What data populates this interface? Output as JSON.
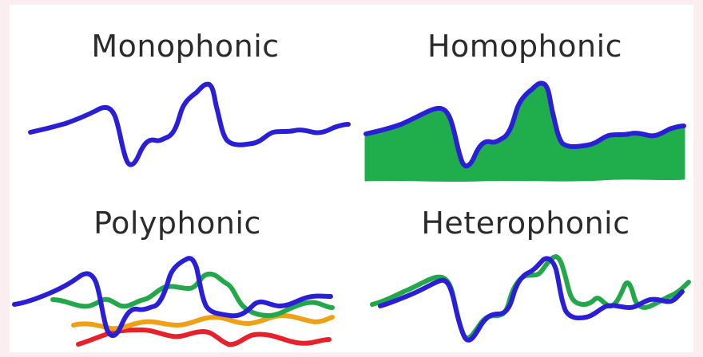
{
  "panels": [
    {
      "id": "monophonic",
      "label": "Monophonic"
    },
    {
      "id": "homophonic",
      "label": "Homophonic"
    },
    {
      "id": "polyphonic",
      "label": "Polyphonic"
    },
    {
      "id": "heterophonic",
      "label": "Heterophonic"
    }
  ],
  "colors": {
    "melody": "#2a1fd6",
    "accompaniment_fill": "#1fae4b",
    "voice_green": "#22a84a",
    "voice_orange": "#f0a015",
    "voice_red": "#e8202a",
    "background": "#fbeef0",
    "card": "#ffffff"
  }
}
